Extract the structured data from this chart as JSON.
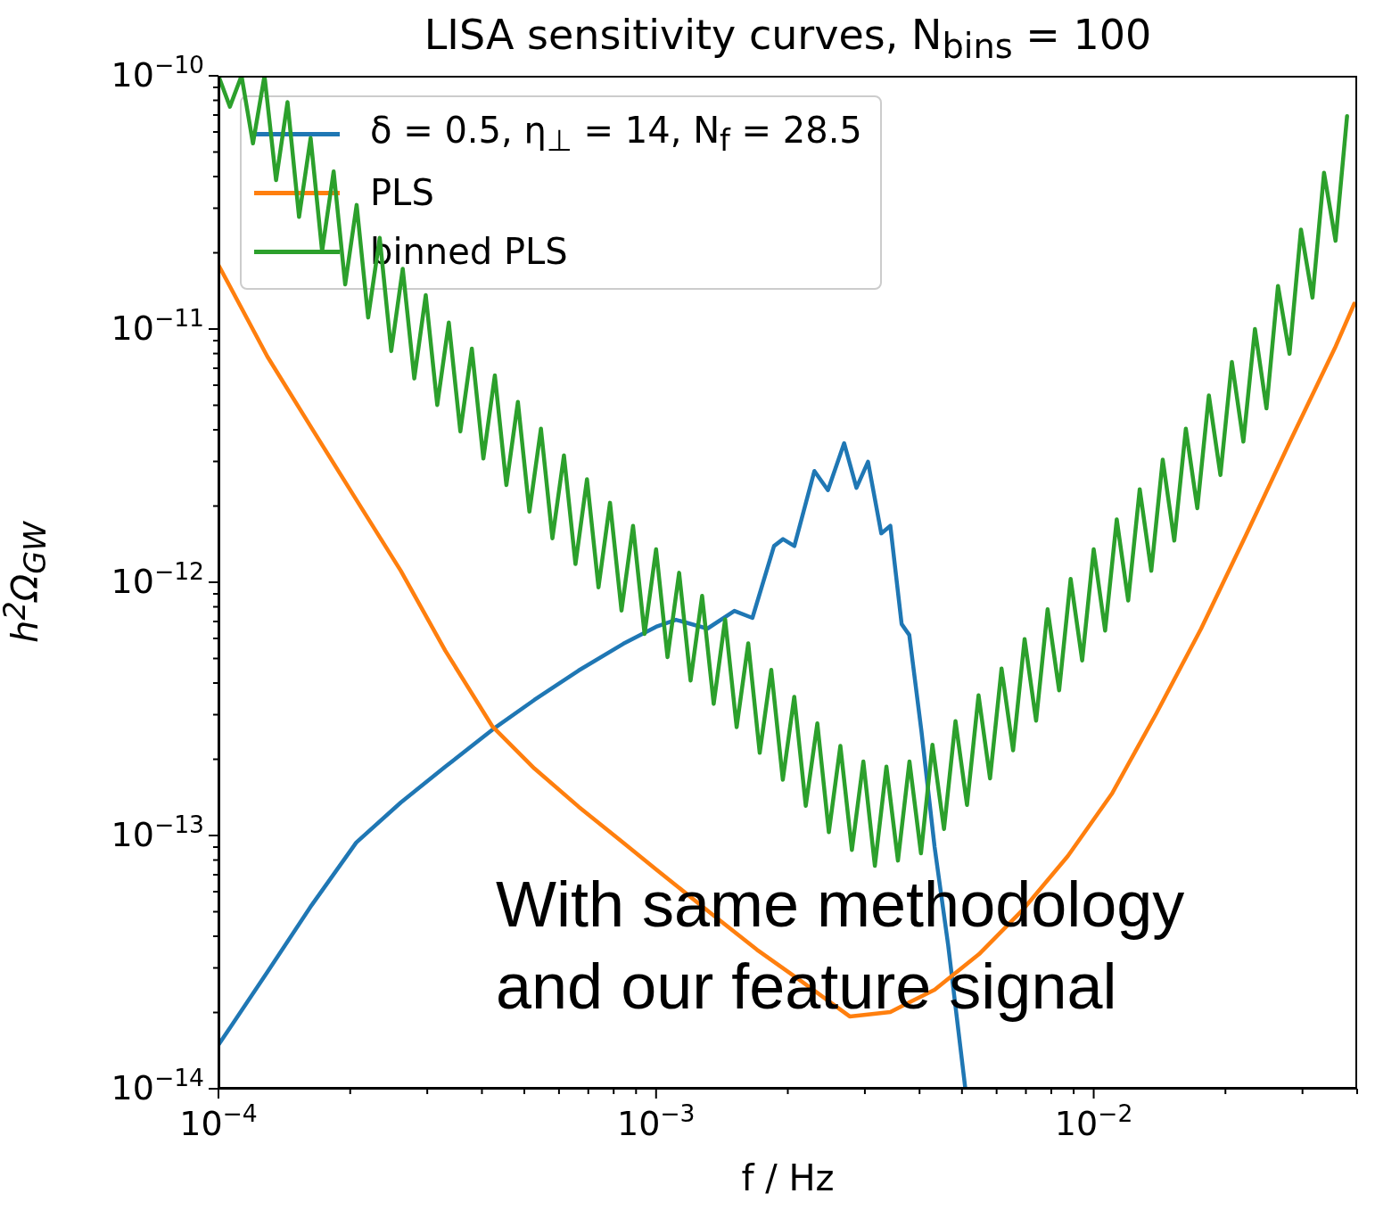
{
  "chart_data": {
    "type": "line",
    "title": "LISA sensitivity curves, N$_{bins}$ = 100",
    "xlabel": "f / Hz",
    "ylabel": "h$^{2}$Ω$_{GW}$",
    "log": "xy",
    "legend": "top left",
    "marker": "none",
    "xlim": [
      0.0001,
      0.04
    ],
    "ylim": [
      1e-14,
      1e-10
    ],
    "xticks": [
      {
        "value": 0.0001,
        "label": "10$^{−4}$"
      },
      {
        "value": 0.0002,
        "label": null
      },
      {
        "value": 0.0003,
        "label": null
      },
      {
        "value": 0.0004,
        "label": null
      },
      {
        "value": 0.0005,
        "label": null
      },
      {
        "value": 0.0006,
        "label": null
      },
      {
        "value": 0.0007,
        "label": null
      },
      {
        "value": 0.0008,
        "label": null
      },
      {
        "value": 0.0009,
        "label": null
      },
      {
        "value": 0.001,
        "label": "10$^{−3}$"
      },
      {
        "value": 0.002,
        "label": null
      },
      {
        "value": 0.003,
        "label": null
      },
      {
        "value": 0.004,
        "label": null
      },
      {
        "value": 0.005,
        "label": null
      },
      {
        "value": 0.006,
        "label": null
      },
      {
        "value": 0.007,
        "label": null
      },
      {
        "value": 0.008,
        "label": null
      },
      {
        "value": 0.009,
        "label": null
      },
      {
        "value": 0.01,
        "label": "10$^{−2}$"
      },
      {
        "value": 0.02,
        "label": null
      },
      {
        "value": 0.03,
        "label": null
      },
      {
        "value": 0.04,
        "label": null
      }
    ],
    "yticks": [
      {
        "value": 1e-14,
        "label": "10$^{−14}$"
      },
      {
        "value": 2e-14,
        "label": null
      },
      {
        "value": 3e-14,
        "label": null
      },
      {
        "value": 4e-14,
        "label": null
      },
      {
        "value": 5e-14,
        "label": null
      },
      {
        "value": 6e-14,
        "label": null
      },
      {
        "value": 7e-14,
        "label": null
      },
      {
        "value": 8e-14,
        "label": null
      },
      {
        "value": 9e-14,
        "label": null
      },
      {
        "value": 1e-13,
        "label": "10$^{−13}$"
      },
      {
        "value": 2e-13,
        "label": null
      },
      {
        "value": 3e-13,
        "label": null
      },
      {
        "value": 4e-13,
        "label": null
      },
      {
        "value": 5e-13,
        "label": null
      },
      {
        "value": 6e-13,
        "label": null
      },
      {
        "value": 7e-13,
        "label": null
      },
      {
        "value": 8e-13,
        "label": null
      },
      {
        "value": 9e-13,
        "label": null
      },
      {
        "value": 1e-12,
        "label": "10$^{−12}$"
      },
      {
        "value": 2e-12,
        "label": null
      },
      {
        "value": 3e-12,
        "label": null
      },
      {
        "value": 4e-12,
        "label": null
      },
      {
        "value": 5e-12,
        "label": null
      },
      {
        "value": 6e-12,
        "label": null
      },
      {
        "value": 7e-12,
        "label": null
      },
      {
        "value": 8e-12,
        "label": null
      },
      {
        "value": 9e-12,
        "label": null
      },
      {
        "value": 1e-11,
        "label": "10$^{−11}$"
      },
      {
        "value": 2e-11,
        "label": null
      },
      {
        "value": 3e-11,
        "label": null
      },
      {
        "value": 4e-11,
        "label": null
      },
      {
        "value": 5e-11,
        "label": null
      },
      {
        "value": 6e-11,
        "label": null
      },
      {
        "value": 7e-11,
        "label": null
      },
      {
        "value": 8e-11,
        "label": null
      },
      {
        "value": 9e-11,
        "label": null
      },
      {
        "value": 1e-10,
        "label": "10$^{−10}$"
      }
    ],
    "series": [
      {
        "name": "δ = 0.5, η$_{⊥}$ = 14, N$_{f}$ = 28.5",
        "color": "#1f77b4",
        "x": [
          0.0001,
          0.0001294,
          0.0001633,
          0.0002065,
          0.000261,
          0.00033,
          0.000423,
          0.000527,
          0.000665,
          0.000841,
          0.001,
          0.00111,
          0.00131,
          0.00151,
          0.00166,
          0.00186,
          0.00195,
          0.00207,
          0.0023,
          0.00247,
          0.00269,
          0.00287,
          0.00305,
          0.00327,
          0.00343,
          0.00364,
          0.00379,
          0.00404,
          0.00433,
          0.00465,
          0.00509
        ],
        "values": [
          1.49e-14,
          2.89e-14,
          5.31e-14,
          9.38e-14,
          1.35e-13,
          1.87e-13,
          2.62e-13,
          3.43e-13,
          4.48e-13,
          5.71e-13,
          6.67e-13,
          7.11e-13,
          6.56e-13,
          7.71e-13,
          7.23e-13,
          1.39e-12,
          1.48e-12,
          1.39e-12,
          2.75e-12,
          2.31e-12,
          3.54e-12,
          2.36e-12,
          2.99e-12,
          1.56e-12,
          1.67e-12,
          6.84e-13,
          6.19e-13,
          2.58e-13,
          9e-14,
          3.69e-14,
          1e-14
        ]
      },
      {
        "name": "PLS",
        "color": "#ff7f0e",
        "x": [
          0.0001,
          0.0001294,
          0.0001633,
          0.0002065,
          0.000261,
          0.00033,
          0.000423,
          0.000527,
          0.000665,
          0.000841,
          0.001,
          0.00134,
          0.0017,
          0.00214,
          0.00277,
          0.00343,
          0.00433,
          0.00547,
          0.0069,
          0.00873,
          0.011,
          0.0139,
          0.0176,
          0.0223,
          0.0281,
          0.0356,
          0.0394
        ],
        "values": [
          1.79e-11,
          7.78e-12,
          4.06e-12,
          2.12e-12,
          1.11e-12,
          5.36e-13,
          2.69e-13,
          1.84e-13,
          1.3e-13,
          9.38e-14,
          7.35e-14,
          4.9e-14,
          3.54e-14,
          2.67e-14,
          1.93e-14,
          2.01e-14,
          2.46e-14,
          3.4e-14,
          5.11e-14,
          8.3e-14,
          1.46e-13,
          3.03e-13,
          6.56e-13,
          1.54e-12,
          3.6e-12,
          8.43e-12,
          1.26e-11
        ]
      },
      {
        "name": "binned PLS",
        "color": "#2ca02c",
        "x": [
          0.0001,
          0.0001062,
          0.0001129,
          0.0001199,
          0.0001274,
          0.0001354,
          0.0001438,
          0.0001528,
          0.0001624,
          0.0001725,
          0.0001833,
          0.0001948,
          0.0002069,
          0.0002198,
          0.0002336,
          0.0002482,
          0.0002637,
          0.0002802,
          0.0002976,
          0.0003162,
          0.000336,
          0.000357,
          0.0003793,
          0.000403,
          0.0004281,
          0.0004549,
          0.0004833,
          0.0005135,
          0.0005456,
          0.0005796,
          0.0006158,
          0.0006543,
          0.0006952,
          0.0007386,
          0.0007847,
          0.0008337,
          0.0008858,
          0.0009412,
          0.001,
          0.001062,
          0.001129,
          0.001199,
          0.001274,
          0.001354,
          0.001438,
          0.001528,
          0.001624,
          0.001725,
          0.001833,
          0.001948,
          0.002069,
          0.002198,
          0.002336,
          0.002482,
          0.002637,
          0.002802,
          0.002976,
          0.003162,
          0.00336,
          0.00357,
          0.003793,
          0.00403,
          0.004281,
          0.004549,
          0.004833,
          0.005135,
          0.005456,
          0.005796,
          0.006158,
          0.006543,
          0.006952,
          0.007386,
          0.007847,
          0.008337,
          0.008858,
          0.009412,
          0.01,
          0.01062,
          0.01129,
          0.01199,
          0.01274,
          0.01354,
          0.01438,
          0.01528,
          0.01624,
          0.01725,
          0.01833,
          0.01948,
          0.02069,
          0.02198,
          0.02336,
          0.02482,
          0.02637,
          0.02802,
          0.02976,
          0.03162,
          0.0336,
          0.0357,
          0.03793
        ],
        "values": [
          1e-10,
          7.55e-11,
          1e-10,
          5.41e-11,
          1e-10,
          3.87e-11,
          7.87e-11,
          2.77e-11,
          5.68e-11,
          2.03e-11,
          4.19e-11,
          1.5e-11,
          3.09e-11,
          1.11e-11,
          2.29e-11,
          8.18e-12,
          1.73e-11,
          6.38e-12,
          1.36e-11,
          5.01e-12,
          1.06e-11,
          3.94e-12,
          8.36e-12,
          3.08e-12,
          6.56e-12,
          2.42e-12,
          5.15e-12,
          1.9e-12,
          4.04e-12,
          1.49e-12,
          3.17e-12,
          1.18e-12,
          2.55e-12,
          9.55e-13,
          2.06e-12,
          7.73e-13,
          1.67e-12,
          6.25e-13,
          1.35e-12,
          5.06e-13,
          1.09e-12,
          4.09e-13,
          8.83e-13,
          3.31e-13,
          7.14e-13,
          2.68e-13,
          5.74e-13,
          2.12e-13,
          4.51e-13,
          1.66e-13,
          3.53e-13,
          1.31e-13,
          2.77e-13,
          1.03e-13,
          2.26e-13,
          8.77e-14,
          1.96e-13,
          7.59e-14,
          1.87e-13,
          7.96e-14,
          1.96e-13,
          8.51e-14,
          2.28e-13,
          1.06e-13,
          2.83e-13,
          1.32e-13,
          3.58e-13,
          1.68e-13,
          4.56e-13,
          2.17e-13,
          5.96e-13,
          2.84e-13,
          7.82e-13,
          3.74e-13,
          1.03e-12,
          4.91e-13,
          1.35e-12,
          6.44e-13,
          1.77e-12,
          8.47e-13,
          2.33e-12,
          1.11e-12,
          3.05e-12,
          1.46e-12,
          4.04e-12,
          1.96e-12,
          5.47e-12,
          2.65e-12,
          7.41e-12,
          3.59e-12,
          1e-11,
          4.86e-12,
          1.48e-11,
          7.98e-12,
          2.47e-11,
          1.33e-11,
          4.14e-11,
          2.23e-11,
          6.93e-11
        ]
      }
    ],
    "annotations": [
      "With same methodology\nand our feature signal"
    ]
  }
}
